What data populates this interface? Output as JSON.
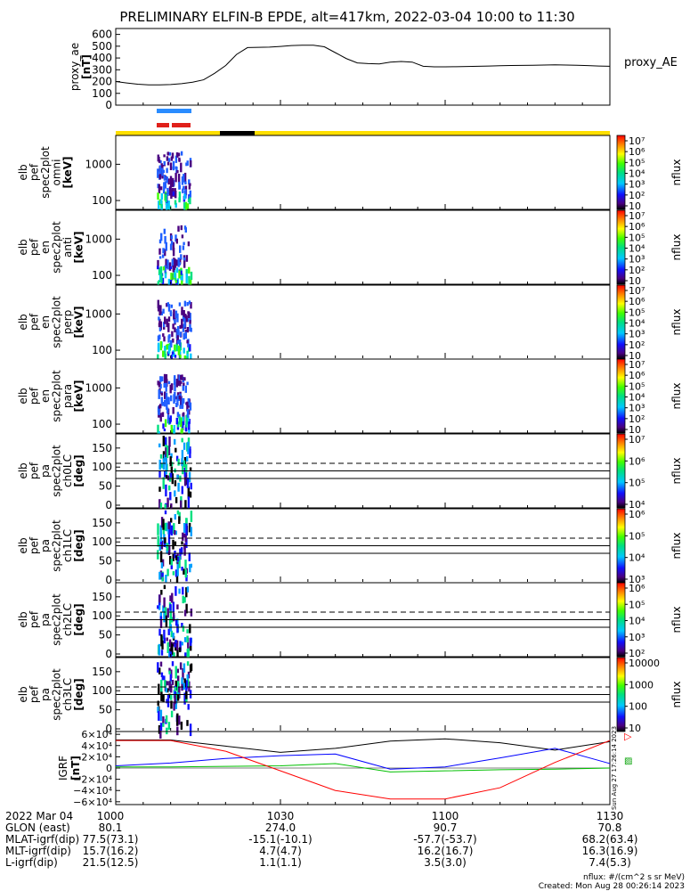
{
  "title": "PRELIMINARY ELFIN-B EPDE, alt=417km, 2022-03-04 10:00 to 11:30",
  "chart_data": [
    {
      "type": "line",
      "panel": "proxy_ae",
      "ylabel_lines": [
        "proxy_ae",
        "[nT]"
      ],
      "legend": "proxy_AE",
      "y_ticks": [
        0,
        100,
        200,
        300,
        400,
        500,
        600
      ],
      "y_tick_labels": [
        "0",
        "100",
        "200",
        "300",
        "400",
        "500",
        "600"
      ],
      "ylim": [
        0,
        650
      ],
      "xlim_minutes": [
        0,
        90
      ],
      "x": [
        0,
        2,
        4,
        6,
        8,
        10,
        12,
        14,
        16,
        18,
        20,
        22,
        24,
        26,
        28,
        30,
        32,
        34,
        36,
        38,
        40,
        42,
        44,
        46,
        48,
        50,
        52,
        54,
        56,
        58,
        60,
        62,
        64,
        66,
        68,
        70,
        72,
        74,
        76,
        78,
        80,
        82,
        84,
        86,
        88,
        90
      ],
      "values": [
        200,
        188,
        178,
        172,
        172,
        175,
        182,
        195,
        215,
        270,
        335,
        430,
        488,
        490,
        492,
        498,
        505,
        508,
        508,
        495,
        445,
        395,
        358,
        352,
        350,
        365,
        370,
        365,
        330,
        325,
        325,
        326,
        328,
        330,
        332,
        334,
        336,
        337,
        338,
        340,
        342,
        340,
        338,
        335,
        332,
        330
      ]
    },
    {
      "type": "heatmap",
      "panel": "omni",
      "ylabel_lines": [
        "elb",
        "pef",
        "spec2plot",
        "omni",
        "[keV]"
      ],
      "y_tick_labels": [
        "1000",
        "100"
      ],
      "colorbar_label": "nflux",
      "colorbar_ticks": [
        "10",
        "10²",
        "10³",
        "10⁴",
        "10⁵",
        "10⁶",
        "10⁷"
      ]
    },
    {
      "type": "heatmap",
      "panel": "anti",
      "ylabel_lines": [
        "elb",
        "pef",
        "en",
        "spec2plot",
        "anti",
        "[keV]"
      ],
      "y_tick_labels": [
        "1000",
        "100"
      ],
      "colorbar_label": "nflux",
      "colorbar_ticks": [
        "10",
        "10²",
        "10³",
        "10⁴",
        "10⁵",
        "10⁶",
        "10⁷"
      ]
    },
    {
      "type": "heatmap",
      "panel": "perp",
      "ylabel_lines": [
        "elb",
        "pef",
        "en",
        "spec2plot",
        "perp",
        "[keV]"
      ],
      "y_tick_labels": [
        "1000",
        "100"
      ],
      "colorbar_label": "nflux",
      "colorbar_ticks": [
        "10",
        "10²",
        "10³",
        "10⁴",
        "10⁵",
        "10⁶",
        "10⁷"
      ]
    },
    {
      "type": "heatmap",
      "panel": "para",
      "ylabel_lines": [
        "elb",
        "pef",
        "en",
        "spec2plot",
        "para",
        "[keV]"
      ],
      "y_tick_labels": [
        "1000",
        "100"
      ],
      "colorbar_label": "nflux",
      "colorbar_ticks": [
        "10",
        "10²",
        "10³",
        "10⁴",
        "10⁵",
        "10⁶",
        "10⁷"
      ]
    },
    {
      "type": "heatmap",
      "panel": "ch0LC",
      "ylabel_lines": [
        "elb",
        "pef",
        "pa",
        "spec2plot",
        "ch0LC",
        "[deg]"
      ],
      "y_tick_labels": [
        "150",
        "100",
        "50",
        "0"
      ],
      "colorbar_label": "nflux",
      "colorbar_ticks": [
        "10⁴",
        "10⁵",
        "10⁶",
        "10⁷"
      ]
    },
    {
      "type": "heatmap",
      "panel": "ch1LC",
      "ylabel_lines": [
        "elb",
        "pef",
        "pa",
        "spec2plot",
        "ch1LC",
        "[deg]"
      ],
      "y_tick_labels": [
        "150",
        "100",
        "50",
        "0"
      ],
      "colorbar_label": "nflux",
      "colorbar_ticks": [
        "10³",
        "10⁴",
        "10⁵",
        "10⁶"
      ]
    },
    {
      "type": "heatmap",
      "panel": "ch2LC",
      "ylabel_lines": [
        "elb",
        "pef",
        "pa",
        "spec2plot",
        "ch2LC",
        "[deg]"
      ],
      "y_tick_labels": [
        "150",
        "100",
        "50",
        "0"
      ],
      "colorbar_label": "nflux",
      "colorbar_ticks": [
        "10²",
        "10³",
        "10⁴",
        "10⁵",
        "10⁶"
      ]
    },
    {
      "type": "heatmap",
      "panel": "ch3LC",
      "ylabel_lines": [
        "elb",
        "pef",
        "pa",
        "spec2plot",
        "ch3LC",
        "[deg]"
      ],
      "y_tick_labels": [
        "150",
        "100",
        "50",
        "0"
      ],
      "colorbar_label": "nflux",
      "colorbar_ticks": [
        "10",
        "100",
        "1000",
        "10000"
      ]
    },
    {
      "type": "line",
      "panel": "IGRF",
      "ylabel_lines": [
        "IGRF",
        "[nT]"
      ],
      "y_tick_labels": [
        "6×10⁴",
        "4×10⁴",
        "2×10⁴",
        "0",
        "−2×10⁴",
        "−4×10⁴",
        "−6×10⁴"
      ],
      "ylim": [
        -65000,
        65000
      ],
      "xlim_minutes": [
        0,
        90
      ],
      "x": [
        0,
        10,
        20,
        30,
        40,
        50,
        60,
        70,
        80,
        90
      ],
      "series": [
        {
          "color": "#000000",
          "values": [
            50000,
            50000,
            39000,
            28000,
            35000,
            48000,
            52000,
            45000,
            32000,
            47000
          ]
        },
        {
          "color": "#0000ff",
          "values": [
            4000,
            9000,
            17000,
            22000,
            25000,
            -2000,
            2000,
            18000,
            35000,
            8000
          ]
        },
        {
          "color": "#00c000",
          "values": [
            2000,
            2000,
            3000,
            4000,
            8000,
            -7000,
            -5000,
            -3000,
            -2000,
            0
          ]
        },
        {
          "color": "#ff0000",
          "values": [
            49000,
            49000,
            30000,
            -5000,
            -40000,
            -55000,
            -55000,
            -35000,
            10000,
            49000
          ]
        }
      ],
      "side_label": "Sun Aug 27 17:26:14 2023"
    }
  ],
  "footer": {
    "rows": [
      {
        "label": "2022 Mar 04",
        "values": [
          "1000",
          "1030",
          "1100",
          "1130"
        ]
      },
      {
        "label": "GLON (east)",
        "values": [
          "80.1",
          "274.0",
          "90.7",
          "70.8"
        ]
      },
      {
        "label": "MLAT-igrf(dip)",
        "values": [
          "77.5(73.1)",
          "-15.1(-10.1)",
          "-57.7(-53.7)",
          "68.2(63.4)"
        ]
      },
      {
        "label": "MLT-igrf(dip)",
        "values": [
          "15.7(16.2)",
          "4.7(4.7)",
          "16.2(16.7)",
          "16.3(16.9)"
        ]
      },
      {
        "label": "L-igrf(dip)",
        "values": [
          "21.5(12.5)",
          "1.1(1.1)",
          "3.5(3.0)",
          "7.4(5.3)"
        ]
      }
    ],
    "units_note": "nflux: #/(cm^2 s sr MeV)",
    "created": "Created: Mon Aug 28 00:26:14 2023"
  },
  "colors": {
    "bar_yellow": "#ffdf00",
    "bar_black": "#000000",
    "marker_blue": "#2a8cff",
    "marker_red": "#e0201a"
  }
}
